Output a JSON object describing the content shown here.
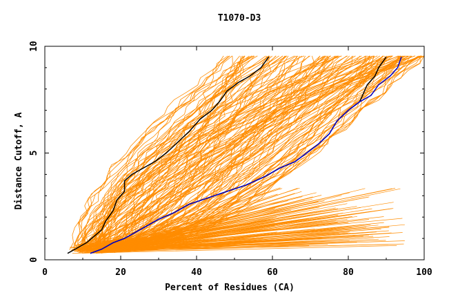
{
  "chart_data": {
    "type": "line",
    "title": "T1070-D3",
    "xlabel": "Percent of Residues (CA)",
    "ylabel": "Distance Cutoff, A",
    "xlim": [
      0,
      100
    ],
    "ylim": [
      0,
      10
    ],
    "x_ticks": [
      "0",
      "20",
      "40",
      "60",
      "80",
      "100"
    ],
    "y_ticks": [
      "0",
      "5",
      "10"
    ],
    "x_tick_values": [
      0,
      20,
      40,
      60,
      80,
      100
    ],
    "y_tick_values": [
      0,
      5,
      10
    ],
    "grid": false,
    "legend": "none",
    "colors": {
      "background_models": "#ff8c00",
      "highlight_black": "#000000",
      "highlight_blue": "#0000cd"
    },
    "background_model_count": 140,
    "highlight_series": [
      {
        "color": "#000000",
        "points": [
          [
            6,
            0.3
          ],
          [
            9,
            0.6
          ],
          [
            11,
            0.8
          ],
          [
            13,
            1.1
          ],
          [
            15,
            1.4
          ],
          [
            16,
            1.8
          ],
          [
            18,
            2.3
          ],
          [
            19,
            2.8
          ],
          [
            21,
            3.2
          ],
          [
            21,
            3.7
          ],
          [
            23,
            4.0
          ],
          [
            26,
            4.3
          ],
          [
            29,
            4.6
          ],
          [
            32,
            5.0
          ],
          [
            35,
            5.5
          ],
          [
            38,
            6.0
          ],
          [
            41,
            6.6
          ],
          [
            44,
            7.0
          ],
          [
            46,
            7.4
          ],
          [
            48,
            7.9
          ],
          [
            51,
            8.3
          ],
          [
            54,
            8.6
          ],
          [
            57,
            9.0
          ],
          [
            59,
            9.5
          ]
        ]
      },
      {
        "color": "#000000",
        "points": [
          [
            12,
            0.3
          ],
          [
            15,
            0.5
          ],
          [
            18,
            0.8
          ],
          [
            21,
            1.0
          ],
          [
            24,
            1.3
          ],
          [
            27,
            1.6
          ],
          [
            30,
            1.9
          ],
          [
            34,
            2.2
          ],
          [
            38,
            2.6
          ],
          [
            43,
            2.9
          ],
          [
            48,
            3.2
          ],
          [
            53,
            3.5
          ],
          [
            58,
            3.9
          ],
          [
            62,
            4.3
          ],
          [
            66,
            4.6
          ],
          [
            69,
            5.0
          ],
          [
            72,
            5.4
          ],
          [
            75,
            5.9
          ],
          [
            77,
            6.5
          ],
          [
            80,
            7.0
          ],
          [
            83,
            7.4
          ],
          [
            84,
            7.8
          ],
          [
            85,
            8.2
          ],
          [
            87,
            8.6
          ],
          [
            88,
            9.0
          ],
          [
            90,
            9.5
          ]
        ]
      },
      {
        "color": "#0000cd",
        "points": [
          [
            12,
            0.3
          ],
          [
            15,
            0.5
          ],
          [
            18,
            0.8
          ],
          [
            21,
            1.0
          ],
          [
            24,
            1.3
          ],
          [
            27,
            1.6
          ],
          [
            30,
            1.9
          ],
          [
            34,
            2.2
          ],
          [
            38,
            2.6
          ],
          [
            43,
            2.9
          ],
          [
            48,
            3.2
          ],
          [
            53,
            3.5
          ],
          [
            58,
            3.9
          ],
          [
            62,
            4.3
          ],
          [
            66,
            4.6
          ],
          [
            69,
            5.0
          ],
          [
            72,
            5.4
          ],
          [
            75,
            5.9
          ],
          [
            77,
            6.5
          ],
          [
            80,
            7.0
          ],
          [
            83,
            7.4
          ],
          [
            86,
            7.7
          ],
          [
            88,
            8.2
          ],
          [
            91,
            8.6
          ],
          [
            93,
            9.0
          ],
          [
            94,
            9.5
          ]
        ]
      }
    ]
  }
}
